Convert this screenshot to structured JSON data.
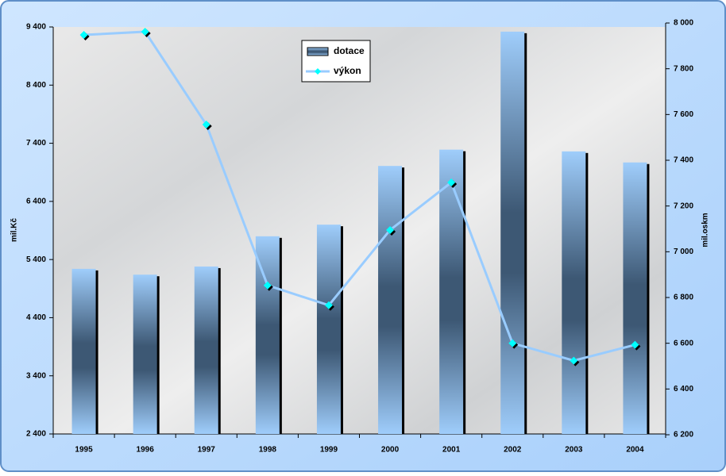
{
  "chart_data": {
    "type": "bar-line",
    "y_label": "mil.Kč",
    "y2_label": "mil.oskm",
    "categories": [
      "1995",
      "1996",
      "1997",
      "1998",
      "1999",
      "2000",
      "2001",
      "2002",
      "2003",
      "2004"
    ],
    "series": [
      {
        "name": "dotace",
        "type": "bar",
        "color": "#4a6a8e",
        "values": [
          5240,
          5140,
          5280,
          5800,
          6000,
          7010,
          7290,
          9320,
          7260,
          7070
        ]
      },
      {
        "name": "výkon",
        "type": "line",
        "axis": "y2",
        "color": "#99ccff",
        "marker_color": "#00ffff",
        "values": [
          7948,
          7962,
          7556,
          6853,
          6766,
          7095,
          7303,
          6600,
          6524,
          6593
        ]
      }
    ],
    "ylim": [
      2400,
      9400
    ],
    "yticks": [
      {
        "value": 2400,
        "label": "2 400"
      },
      {
        "value": 3400,
        "label": "3 400"
      },
      {
        "value": 4400,
        "label": "4 400"
      },
      {
        "value": 5400,
        "label": "5 400"
      },
      {
        "value": 6400,
        "label": "6 400"
      },
      {
        "value": 7400,
        "label": "7 400"
      },
      {
        "value": 8400,
        "label": "8 400"
      },
      {
        "value": 9400,
        "label": "9 400"
      }
    ],
    "y2lim": [
      6200,
      8000
    ],
    "y2ticks": [
      {
        "value": 6200,
        "label": "6 200"
      },
      {
        "value": 6400,
        "label": "6 400"
      },
      {
        "value": 6600,
        "label": "6 600"
      },
      {
        "value": 6800,
        "label": "6 800"
      },
      {
        "value": 7000,
        "label": "7 000"
      },
      {
        "value": 7200,
        "label": "7 200"
      },
      {
        "value": 7400,
        "label": "7 400"
      },
      {
        "value": 7600,
        "label": "7 600"
      },
      {
        "value": 7800,
        "label": "7 800"
      },
      {
        "value": 8000,
        "label": "8 000"
      }
    ],
    "legend": "top-center"
  }
}
